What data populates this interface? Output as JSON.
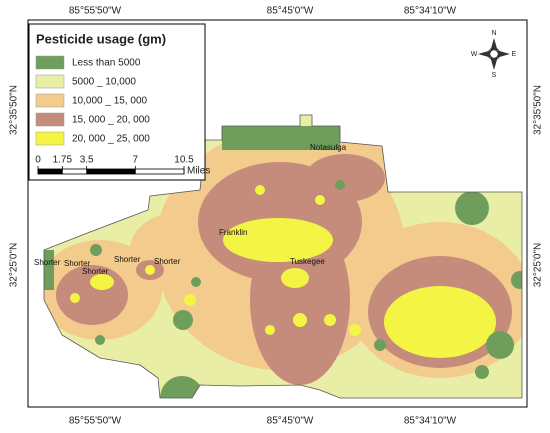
{
  "map": {
    "coordinates": {
      "top": [
        "85°55'50\"W",
        "85°45'0\"W",
        "85°34'10\"W"
      ],
      "bottom": [
        "85°55'50\"W",
        "85°45'0\"W",
        "85°34'10\"W"
      ],
      "left": [
        "32°35'50\"N",
        "32°25'0\"N"
      ],
      "right": [
        "32°35'50\"N",
        "32°25'0\"N"
      ]
    },
    "legend": {
      "title": "Pesticide usage (gm)",
      "items": [
        {
          "label": "Less than 5000",
          "color": "#6f9e5c"
        },
        {
          "label": "5000 _ 10,000",
          "color": "#e9eea6"
        },
        {
          "label": "10,000 _ 15, 000",
          "color": "#f3cb8c"
        },
        {
          "label": "15, 000 _ 20, 000",
          "color": "#c58c7c"
        },
        {
          "label": "20, 000 _ 25, 000",
          "color": "#f4f444"
        }
      ]
    },
    "scale_bar": {
      "ticks": [
        0,
        1.75,
        3.5,
        7,
        10.5
      ],
      "unit": "Miles"
    },
    "compass": {
      "n": "N",
      "s": "S",
      "w": "W",
      "e": "E"
    },
    "places": [
      "Notasulga",
      "Franklin",
      "Tuskegee",
      "Shorter",
      "Shorter",
      "Shorter",
      "Shorter",
      "Shorter"
    ]
  }
}
